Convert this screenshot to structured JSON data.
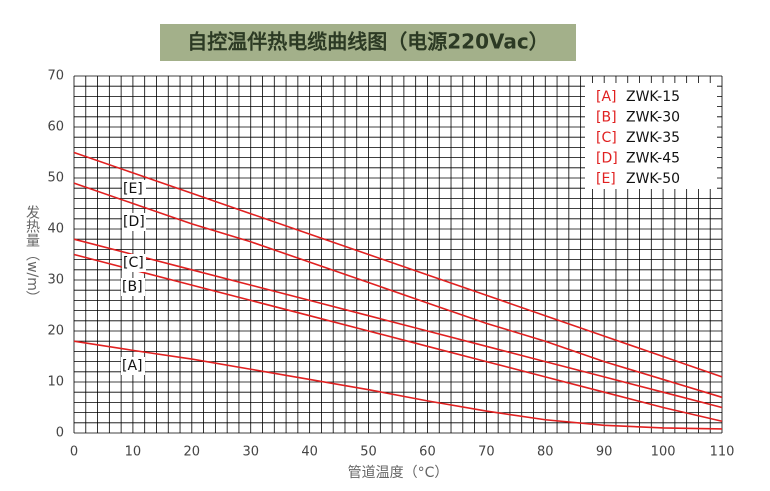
{
  "chart_data": {
    "type": "line",
    "title": "自控温伴热电缆曲线图（电源220Vac）",
    "x_label": "管道温度（°C）",
    "y_label": "发热量（w/m）",
    "x": [
      0,
      10,
      20,
      30,
      40,
      50,
      60,
      70,
      80,
      90,
      100,
      110
    ],
    "series": [
      {
        "label": "[A]",
        "name": "ZWK-15",
        "color": "#e02020",
        "values": [
          18,
          16.2,
          14.5,
          12.5,
          10.5,
          8.5,
          6.3,
          4.3,
          2.6,
          1.5,
          1,
          0.8
        ]
      },
      {
        "label": "[B]",
        "name": "ZWK-30",
        "color": "#e02020",
        "values": [
          35,
          32,
          29,
          26,
          23,
          20,
          17,
          14,
          11,
          8,
          5,
          2.3
        ]
      },
      {
        "label": "[C]",
        "name": "ZWK-35",
        "color": "#e02020",
        "values": [
          38,
          35,
          32,
          29,
          26,
          23,
          20,
          17,
          14,
          11,
          8,
          5
        ]
      },
      {
        "label": "[D]",
        "name": "ZWK-45",
        "color": "#e02020",
        "values": [
          49,
          45,
          41,
          37.5,
          33.5,
          29.5,
          25.5,
          21.5,
          18,
          14,
          10.5,
          7
        ]
      },
      {
        "label": "[E]",
        "name": "ZWK-50",
        "color": "#e02020",
        "values": [
          55,
          51,
          47,
          43,
          39,
          35,
          31,
          27,
          23,
          19,
          15,
          11
        ]
      }
    ],
    "xlim": [
      0,
      110
    ],
    "xticks": [
      0,
      10,
      20,
      30,
      40,
      50,
      60,
      70,
      80,
      90,
      100,
      110
    ],
    "ylim": [
      0,
      70
    ],
    "yticks": [
      0,
      10,
      20,
      30,
      40,
      50,
      60,
      70
    ],
    "grid": true,
    "legend": "upper right"
  }
}
